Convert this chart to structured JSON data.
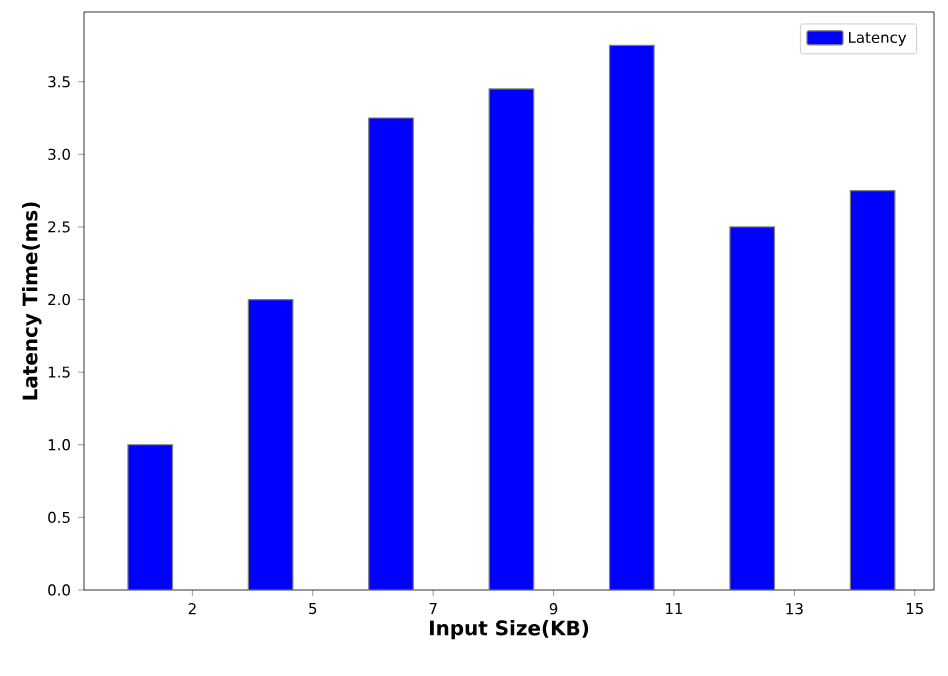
{
  "chart_data": {
    "type": "bar",
    "xlabel": "Input Size(KB)",
    "ylabel": "Latency Time(ms)",
    "categories": [
      "2",
      "5",
      "7",
      "9",
      "11",
      "13",
      "15"
    ],
    "series": [
      {
        "name": "Latency",
        "color": "#0000ff",
        "values": [
          1.0,
          2.0,
          3.25,
          3.45,
          3.75,
          2.5,
          2.75
        ]
      }
    ],
    "ylim": [
      0,
      3.98
    ],
    "yticks": [
      {
        "value": 0,
        "label": "0.0"
      },
      0.5,
      {
        "value": 1,
        "label": "1.0"
      },
      1.5,
      {
        "value": 2,
        "label": "2.0"
      },
      2.5,
      {
        "value": 3,
        "label": "3.0"
      },
      3.5
    ],
    "legend": "top right"
  }
}
